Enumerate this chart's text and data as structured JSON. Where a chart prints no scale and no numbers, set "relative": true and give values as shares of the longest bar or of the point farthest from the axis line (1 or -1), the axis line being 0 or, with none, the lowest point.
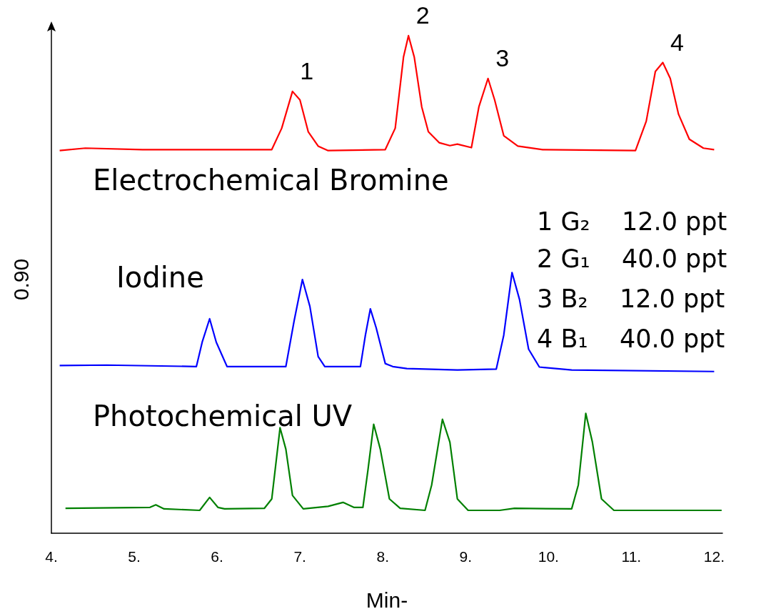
{
  "chart_data": {
    "type": "line",
    "relative": true,
    "xlabel": "Min-",
    "ylabel": "0.90",
    "xlim": [
      4,
      12.1
    ],
    "xticks": [
      {
        "value": 4,
        "label": "4."
      },
      {
        "value": 5,
        "label": "5."
      },
      {
        "value": 6,
        "label": "6."
      },
      {
        "value": 7,
        "label": "7."
      },
      {
        "value": 8,
        "label": "8."
      },
      {
        "value": 9,
        "label": "9."
      },
      {
        "value": 10,
        "label": "10."
      },
      {
        "value": 11,
        "label": "11."
      },
      {
        "value": 12,
        "label": "12."
      }
    ],
    "grid": false,
    "marker": "none",
    "line_style": "solid",
    "series": [
      {
        "color": "#ff0000",
        "x": [
          4.1,
          4.41,
          5.1,
          6.66,
          6.78,
          6.91,
          7.0,
          7.1,
          7.22,
          7.34,
          8.03,
          8.15,
          8.25,
          8.31,
          8.38,
          8.47,
          8.55,
          8.68,
          8.81,
          8.9,
          9.07,
          9.16,
          9.27,
          9.35,
          9.46,
          9.63,
          9.93,
          11.05,
          11.18,
          11.29,
          11.38,
          11.47,
          11.57,
          11.7,
          11.87,
          12.0
        ],
        "values": [
          0.769,
          0.774,
          0.771,
          0.771,
          0.814,
          0.888,
          0.871,
          0.807,
          0.778,
          0.769,
          0.771,
          0.814,
          0.957,
          1,
          0.957,
          0.857,
          0.807,
          0.785,
          0.779,
          0.782,
          0.775,
          0.857,
          0.914,
          0.871,
          0.799,
          0.778,
          0.771,
          0.769,
          0.828,
          0.928,
          0.946,
          0.914,
          0.842,
          0.792,
          0.774,
          0.771
        ]
      },
      {
        "color": "#0000ff",
        "x": [
          4.1,
          4.67,
          5.75,
          5.82,
          5.91,
          5.99,
          6.12,
          6.83,
          6.93,
          7.03,
          7.12,
          7.22,
          7.3,
          7.73,
          7.79,
          7.85,
          7.92,
          8.03,
          8.12,
          8.29,
          8.9,
          9.37,
          9.46,
          9.56,
          9.65,
          9.76,
          9.89,
          10.28,
          12.0
        ],
        "values": [
          0.337,
          0.338,
          0.335,
          0.384,
          0.431,
          0.384,
          0.335,
          0.335,
          0.427,
          0.51,
          0.456,
          0.355,
          0.335,
          0.335,
          0.398,
          0.451,
          0.413,
          0.341,
          0.335,
          0.331,
          0.328,
          0.33,
          0.398,
          0.524,
          0.47,
          0.37,
          0.334,
          0.328,
          0.325
        ]
      },
      {
        "color": "#008000",
        "x": [
          4.17,
          5.19,
          5.26,
          5.36,
          5.79,
          5.91,
          6.01,
          6.09,
          6.57,
          6.66,
          6.76,
          6.83,
          6.91,
          7.04,
          7.34,
          7.52,
          7.65,
          7.76,
          7.82,
          7.89,
          7.97,
          8.08,
          8.21,
          8.51,
          8.59,
          8.72,
          8.81,
          8.9,
          9.03,
          9.41,
          9.59,
          10.28,
          10.36,
          10.45,
          10.53,
          10.64,
          10.79,
          12.09
        ],
        "values": [
          0.05,
          0.052,
          0.057,
          0.049,
          0.046,
          0.072,
          0.052,
          0.049,
          0.05,
          0.069,
          0.212,
          0.169,
          0.076,
          0.049,
          0.054,
          0.062,
          0.052,
          0.052,
          0.126,
          0.219,
          0.169,
          0.069,
          0.05,
          0.046,
          0.097,
          0.229,
          0.183,
          0.069,
          0.046,
          0.046,
          0.05,
          0.049,
          0.097,
          0.241,
          0.183,
          0.069,
          0.046,
          0.046
        ]
      }
    ],
    "annotations": [
      {
        "text": "1",
        "x": 6.91,
        "y": 0.888
      },
      {
        "text": "2",
        "x": 8.31,
        "y": 1
      },
      {
        "text": "3",
        "x": 9.27,
        "y": 0.914
      },
      {
        "text": "4",
        "x": 11.38,
        "y": 0.946
      },
      "Electrochemical Bromine",
      "Iodine",
      "Photochemical UV",
      "1 G₂    12.0 ppt",
      "2 G₁    40.0 ppt",
      "3 B₂    12.0 ppt",
      "4 B₁    40.0 ppt"
    ]
  }
}
